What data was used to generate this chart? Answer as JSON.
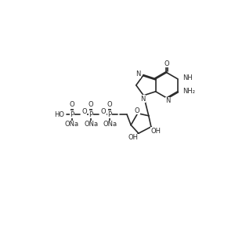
{
  "bg_color": "#ffffff",
  "line_color": "#2a2a2a",
  "text_color": "#2a2a2a",
  "lw": 1.2,
  "font_size": 6.0,
  "fig_w": 3.0,
  "fig_h": 3.0,
  "dpi": 100,
  "xlim": [
    0,
    10
  ],
  "ylim": [
    0,
    10
  ]
}
